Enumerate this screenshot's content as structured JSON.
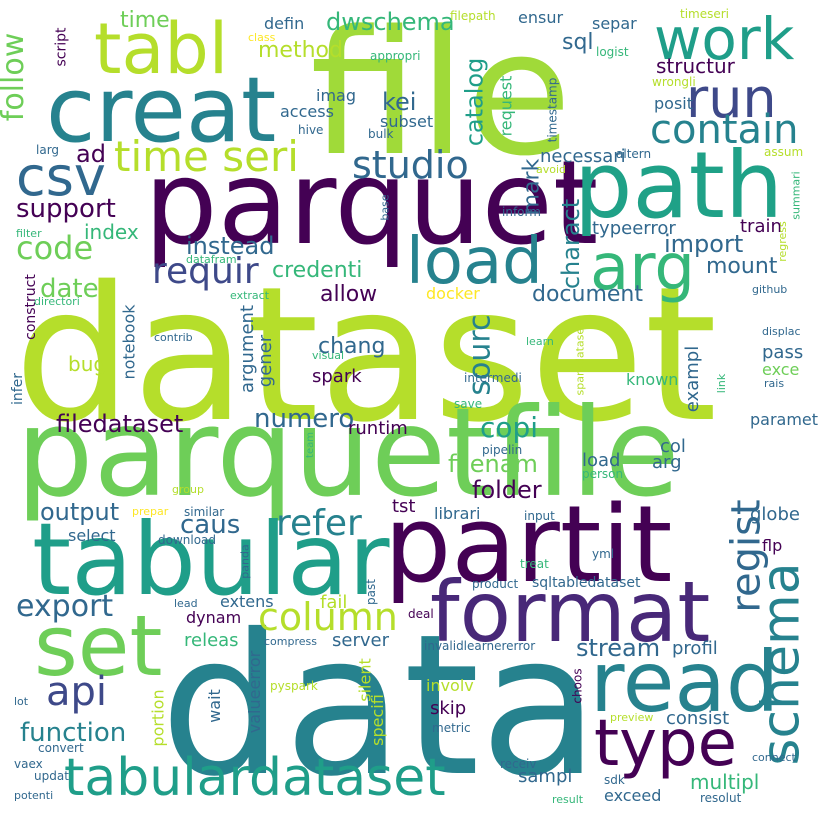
{
  "colors": {
    "background": "#ffffff",
    "palette": [
      "#440154",
      "#482878",
      "#3e4989",
      "#31688e",
      "#26828e",
      "#1f9e89",
      "#35b779",
      "#6ece58",
      "#b5de2b",
      "#fde725"
    ]
  },
  "words": [
    {
      "text": "dataset",
      "color": "#b5de2b"
    },
    {
      "text": "data",
      "color": "#26828e"
    },
    {
      "text": "file",
      "color": "#a0da39"
    },
    {
      "text": "parquet",
      "color": "#440154"
    },
    {
      "text": "parquetfile",
      "color": "#6ece58"
    },
    {
      "text": "tabular",
      "color": "#1f9e89"
    },
    {
      "text": "partit",
      "color": "#440154"
    },
    {
      "text": "format",
      "color": "#482878"
    },
    {
      "text": "path",
      "color": "#1fa187"
    },
    {
      "text": "creat",
      "color": "#26828e"
    },
    {
      "text": "tabl",
      "color": "#b5de2b"
    },
    {
      "text": "set",
      "color": "#6ece58"
    },
    {
      "text": "read",
      "color": "#26828e"
    },
    {
      "text": "type",
      "color": "#440154"
    },
    {
      "text": "tabulardataset",
      "color": "#1f9e89"
    },
    {
      "text": "schema",
      "color": "#26828e"
    },
    {
      "text": "load",
      "color": "#26828e"
    },
    {
      "text": "arg",
      "color": "#35b779"
    },
    {
      "text": "work",
      "color": "#1f9e89"
    },
    {
      "text": "run",
      "color": "#3e4989"
    },
    {
      "text": "contain",
      "color": "#26828e"
    },
    {
      "text": "csv",
      "color": "#31688e"
    },
    {
      "text": "time seri",
      "color": "#b5de2b"
    },
    {
      "text": "studio",
      "color": "#31688e"
    },
    {
      "text": "api",
      "color": "#3e4989"
    },
    {
      "text": "column",
      "color": "#b5de2b"
    },
    {
      "text": "export",
      "color": "#31688e"
    },
    {
      "text": "refer",
      "color": "#26828e"
    },
    {
      "text": "regist",
      "color": "#31688e"
    },
    {
      "text": "code",
      "color": "#6ece58"
    },
    {
      "text": "requir",
      "color": "#3e4989"
    },
    {
      "text": "follow",
      "color": "#6ece58"
    },
    {
      "text": "support",
      "color": "#440154"
    },
    {
      "text": "function",
      "color": "#26828e"
    },
    {
      "text": "stream",
      "color": "#31688e"
    },
    {
      "text": "filedataset",
      "color": "#440154"
    },
    {
      "text": "copi",
      "color": "#1f9e89"
    },
    {
      "text": "output",
      "color": "#31688e"
    },
    {
      "text": "caus",
      "color": "#31688e"
    },
    {
      "text": "folder",
      "color": "#440154"
    },
    {
      "text": "filenam",
      "color": "#6ece58"
    },
    {
      "text": "numero",
      "color": "#31688e"
    },
    {
      "text": "document",
      "color": "#31688e"
    },
    {
      "text": "date",
      "color": "#6ece58"
    },
    {
      "text": "sourc",
      "color": "#26828e"
    },
    {
      "text": "charact",
      "color": "#26828e"
    },
    {
      "text": "instead",
      "color": "#31688e"
    },
    {
      "text": "import",
      "color": "#31688e"
    },
    {
      "text": "mount",
      "color": "#31688e"
    },
    {
      "text": "credenti",
      "color": "#35b779"
    },
    {
      "text": "allow",
      "color": "#440154"
    },
    {
      "text": "method",
      "color": "#b5de2b"
    },
    {
      "text": "structur",
      "color": "#440154"
    },
    {
      "text": "dwschema",
      "color": "#35b779"
    },
    {
      "text": "catalog",
      "color": "#1f9e89"
    },
    {
      "text": "sql",
      "color": "#31688e"
    },
    {
      "text": "kei",
      "color": "#31688e"
    },
    {
      "text": "ad",
      "color": "#440154"
    },
    {
      "text": "time",
      "color": "#6ece58"
    },
    {
      "text": "mark",
      "color": "#31688e"
    },
    {
      "text": "index",
      "color": "#35b779"
    },
    {
      "text": "necessari",
      "color": "#31688e"
    },
    {
      "text": "typeerror",
      "color": "#31688e"
    },
    {
      "text": "train",
      "color": "#440154"
    },
    {
      "text": "chang",
      "color": "#31688e"
    },
    {
      "text": "argument",
      "color": "#31688e"
    },
    {
      "text": "gener",
      "color": "#31688e"
    },
    {
      "text": "spark",
      "color": "#440154"
    },
    {
      "text": "runtim",
      "color": "#440154"
    },
    {
      "text": "notebook",
      "color": "#31688e"
    },
    {
      "text": "bug",
      "color": "#b5de2b"
    },
    {
      "text": "pass",
      "color": "#31688e"
    },
    {
      "text": "exce",
      "color": "#6ece58"
    },
    {
      "text": "exampl",
      "color": "#31688e"
    },
    {
      "text": "known",
      "color": "#35b779"
    },
    {
      "text": "paramet",
      "color": "#31688e"
    },
    {
      "text": "col",
      "color": "#31688e"
    },
    {
      "text": "arg",
      "color": "#31688e"
    },
    {
      "text": "load",
      "color": "#31688e"
    },
    {
      "text": "tst",
      "color": "#440154"
    },
    {
      "text": "librari",
      "color": "#31688e"
    },
    {
      "text": "globe",
      "color": "#31688e"
    },
    {
      "text": "flp",
      "color": "#440154"
    },
    {
      "text": "select",
      "color": "#31688e"
    },
    {
      "text": "extens",
      "color": "#31688e"
    },
    {
      "text": "fail",
      "color": "#b5de2b"
    },
    {
      "text": "dynam",
      "color": "#440154"
    },
    {
      "text": "releas",
      "color": "#35b779"
    },
    {
      "text": "server",
      "color": "#31688e"
    },
    {
      "text": "profil",
      "color": "#31688e"
    },
    {
      "text": "involv",
      "color": "#b5de2b"
    },
    {
      "text": "skip",
      "color": "#440154"
    },
    {
      "text": "consist",
      "color": "#31688e"
    },
    {
      "text": "sampl",
      "color": "#31688e"
    },
    {
      "text": "multipl",
      "color": "#35b779"
    },
    {
      "text": "exceed",
      "color": "#31688e"
    },
    {
      "text": "valueerror",
      "color": "#31688e"
    },
    {
      "text": "wait",
      "color": "#31688e"
    },
    {
      "text": "portion",
      "color": "#b5de2b"
    },
    {
      "text": "specifi",
      "color": "#b5de2b"
    },
    {
      "text": "silent",
      "color": "#b5de2b"
    },
    {
      "text": "script",
      "color": "#440154"
    },
    {
      "text": "defin",
      "color": "#31688e"
    },
    {
      "text": "ensur",
      "color": "#31688e"
    },
    {
      "text": "separ",
      "color": "#31688e"
    },
    {
      "text": "imag",
      "color": "#31688e"
    },
    {
      "text": "access",
      "color": "#31688e"
    },
    {
      "text": "subset",
      "color": "#31688e"
    },
    {
      "text": "posit",
      "color": "#31688e"
    },
    {
      "text": "request",
      "color": "#35b779"
    },
    {
      "text": "timestamp",
      "color": "#31688e"
    },
    {
      "text": "docker",
      "color": "#fde725"
    },
    {
      "text": "infer",
      "color": "#31688e"
    },
    {
      "text": "construct",
      "color": "#440154"
    },
    {
      "text": "larg",
      "color": "#31688e"
    },
    {
      "text": "filepath",
      "color": "#b5de2b"
    },
    {
      "text": "timeseri",
      "color": "#b5de2b"
    },
    {
      "text": "class",
      "color": "#fde725"
    },
    {
      "text": "appropri",
      "color": "#35b779"
    },
    {
      "text": "logist",
      "color": "#35b779"
    },
    {
      "text": "wrongli",
      "color": "#b5de2b"
    },
    {
      "text": "hive",
      "color": "#31688e"
    },
    {
      "text": "bulk",
      "color": "#31688e"
    },
    {
      "text": "altern",
      "color": "#31688e"
    },
    {
      "text": "assum",
      "color": "#b5de2b"
    },
    {
      "text": "avoid",
      "color": "#b5de2b"
    },
    {
      "text": "summari",
      "color": "#35b779"
    },
    {
      "text": "regress",
      "color": "#b5de2b"
    },
    {
      "text": "inform",
      "color": "#31688e"
    },
    {
      "text": "base",
      "color": "#31688e"
    },
    {
      "text": "filter",
      "color": "#35b779"
    },
    {
      "text": "datafram",
      "color": "#35b779"
    },
    {
      "text": "extract",
      "color": "#35b779"
    },
    {
      "text": "github",
      "color": "#31688e"
    },
    {
      "text": "directori",
      "color": "#35b779"
    },
    {
      "text": "contrib",
      "color": "#31688e"
    },
    {
      "text": "visual",
      "color": "#35b779"
    },
    {
      "text": "learn",
      "color": "#35b779"
    },
    {
      "text": "sparkdataset",
      "color": "#b5de2b"
    },
    {
      "text": "displac",
      "color": "#31688e"
    },
    {
      "text": "link",
      "color": "#35b779"
    },
    {
      "text": "rais",
      "color": "#31688e"
    },
    {
      "text": "intermedi",
      "color": "#31688e"
    },
    {
      "text": "save",
      "color": "#35b779"
    },
    {
      "text": "team",
      "color": "#35b779"
    },
    {
      "text": "pipelin",
      "color": "#31688e"
    },
    {
      "text": "person",
      "color": "#35b779"
    },
    {
      "text": "group",
      "color": "#b5de2b"
    },
    {
      "text": "prepar",
      "color": "#fde725"
    },
    {
      "text": "similar",
      "color": "#31688e"
    },
    {
      "text": "input",
      "color": "#31688e"
    },
    {
      "text": "download",
      "color": "#31688e"
    },
    {
      "text": "panda",
      "color": "#31688e"
    },
    {
      "text": "yml",
      "color": "#31688e"
    },
    {
      "text": "treat",
      "color": "#35b779"
    },
    {
      "text": "past",
      "color": "#31688e"
    },
    {
      "text": "product",
      "color": "#31688e"
    },
    {
      "text": "sqltabledataset",
      "color": "#31688e"
    },
    {
      "text": "lead",
      "color": "#31688e"
    },
    {
      "text": "deal",
      "color": "#440154"
    },
    {
      "text": "compress",
      "color": "#31688e"
    },
    {
      "text": "invalidlearnererror",
      "color": "#31688e"
    },
    {
      "text": "choos",
      "color": "#440154"
    },
    {
      "text": "pyspark",
      "color": "#b5de2b"
    },
    {
      "text": "lot",
      "color": "#31688e"
    },
    {
      "text": "convert",
      "color": "#31688e"
    },
    {
      "text": "vaex",
      "color": "#31688e"
    },
    {
      "text": "updat",
      "color": "#31688e"
    },
    {
      "text": "potenti",
      "color": "#31688e"
    },
    {
      "text": "metric",
      "color": "#31688e"
    },
    {
      "text": "preview",
      "color": "#b5de2b"
    },
    {
      "text": "receiv",
      "color": "#31688e"
    },
    {
      "text": "sdk",
      "color": "#31688e"
    },
    {
      "text": "result",
      "color": "#35b779"
    },
    {
      "text": "resolut",
      "color": "#31688e"
    },
    {
      "text": "connect",
      "color": "#31688e"
    }
  ]
}
